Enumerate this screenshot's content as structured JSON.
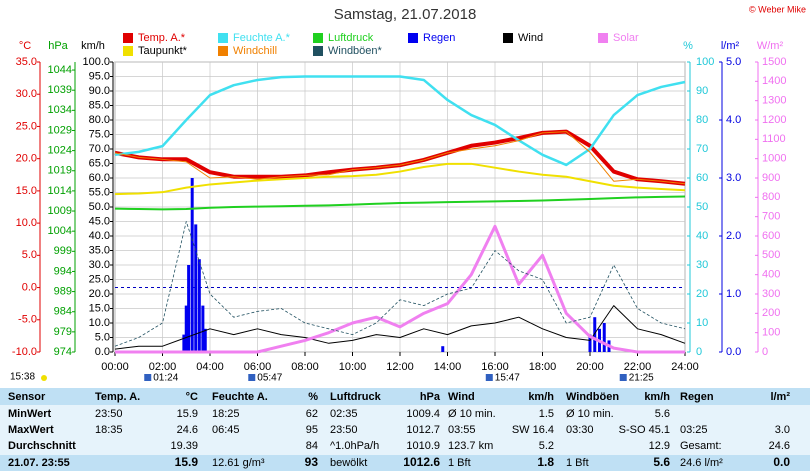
{
  "chart_data": {
    "type": "line",
    "title": "Samstag, 21.07.2018",
    "copyright": "© Weber Mike",
    "xlim": [
      0,
      24
    ],
    "xticks": [
      {
        "value": 0,
        "label": "00:00"
      },
      {
        "value": 2,
        "label": "02:00"
      },
      {
        "value": 4,
        "label": "04:00"
      },
      {
        "value": 6,
        "label": "06:00"
      },
      {
        "value": 8,
        "label": "08:00"
      },
      {
        "value": 10,
        "label": "10:00"
      },
      {
        "value": 12,
        "label": "12:00"
      },
      {
        "value": 14,
        "label": "14:00"
      },
      {
        "value": 16,
        "label": "16:00"
      },
      {
        "value": 18,
        "label": "18:00"
      },
      {
        "value": 20,
        "label": "20:00"
      },
      {
        "value": 22,
        "label": "22:00"
      },
      {
        "value": 24,
        "label": "24:00"
      }
    ],
    "grid": true,
    "grid_axis": "kmh",
    "reference_line": {
      "axis": "temp",
      "tick": 2
    },
    "axes": [
      {
        "id": "temp",
        "label": "°C",
        "color": "#e00000",
        "lim": [
          -10,
          35
        ],
        "ticks": [
          {
            "value": -10,
            "label": "-10.0"
          },
          {
            "value": -5,
            "label": "-5.0"
          },
          {
            "value": 0,
            "label": "0.0"
          },
          {
            "value": 5,
            "label": "5.0"
          },
          {
            "value": 10,
            "label": "10.0"
          },
          {
            "value": 15,
            "label": "15.0"
          },
          {
            "value": 20,
            "label": "20.0"
          },
          {
            "value": 25,
            "label": "25.0"
          },
          {
            "value": 30,
            "label": "30.0"
          },
          {
            "value": 35,
            "label": "35.0"
          }
        ]
      },
      {
        "id": "hpa",
        "label": "hPa",
        "color": "#00a000",
        "lim": [
          974,
          1046
        ],
        "ticks": [
          974,
          979,
          984,
          989,
          994,
          999,
          1004,
          1009,
          1014,
          1019,
          1024,
          1029,
          1034,
          1039,
          1044
        ]
      },
      {
        "id": "kmh",
        "label": "km/h",
        "color": "#000000",
        "lim": [
          0,
          100
        ],
        "ticks": [
          {
            "value": 0,
            "label": "0.0"
          },
          {
            "value": 5,
            "label": "5.0"
          },
          {
            "value": 10,
            "label": "10.0"
          },
          {
            "value": 15,
            "label": "15.0"
          },
          {
            "value": 20,
            "label": "20.0"
          },
          {
            "value": 25,
            "label": "25.0"
          },
          {
            "value": 30,
            "label": "30.0"
          },
          {
            "value": 35,
            "label": "35.0"
          },
          {
            "value": 40,
            "label": "40.0"
          },
          {
            "value": 45,
            "label": "45.0"
          },
          {
            "value": 50,
            "label": "50.0"
          },
          {
            "value": 55,
            "label": "55.0"
          },
          {
            "value": 60,
            "label": "60.0"
          },
          {
            "value": 65,
            "label": "65.0"
          },
          {
            "value": 70,
            "label": "70.0"
          },
          {
            "value": 75,
            "label": "75.0"
          },
          {
            "value": 80,
            "label": "80.0"
          },
          {
            "value": 85,
            "label": "85.0"
          },
          {
            "value": 90,
            "label": "90.0"
          },
          {
            "value": 95,
            "label": "95.0"
          },
          {
            "value": 100,
            "label": "100.0"
          }
        ]
      },
      {
        "id": "pct",
        "label": "%",
        "color": "#20c8d8",
        "lim": [
          0,
          100
        ],
        "ticks": [
          0,
          10,
          20,
          30,
          40,
          50,
          60,
          70,
          80,
          90,
          100
        ]
      },
      {
        "id": "rain",
        "label": "l/m²",
        "color": "#0000e0",
        "lim": [
          0,
          5
        ],
        "ticks": [
          {
            "value": 0,
            "label": "0.0"
          },
          {
            "value": 1,
            "label": "1.0"
          },
          {
            "value": 2,
            "label": "2.0"
          },
          {
            "value": 3,
            "label": "3.0"
          },
          {
            "value": 4,
            "label": "4.0"
          },
          {
            "value": 5,
            "label": "5.0"
          }
        ]
      },
      {
        "id": "solar",
        "label": "W/m²",
        "color": "#f070f0",
        "lim": [
          0,
          1500
        ],
        "ticks": [
          0,
          100,
          200,
          300,
          400,
          500,
          600,
          700,
          800,
          900,
          1000,
          1100,
          1200,
          1300,
          1400,
          1500
        ]
      }
    ],
    "x": [
      0,
      1,
      2,
      3,
      4,
      5,
      6,
      7,
      8,
      9,
      10,
      11,
      12,
      13,
      14,
      15,
      16,
      17,
      18,
      19,
      20,
      21,
      22,
      23,
      24
    ],
    "series": [
      {
        "name": "Temp. A.*",
        "color": "#e00000",
        "axis": "temp",
        "style": "line",
        "width": 4,
        "values": [
          20.9,
          20.2,
          19.9,
          19.9,
          17.9,
          17.2,
          17.2,
          17.2,
          17.4,
          17.9,
          18.3,
          18.6,
          19.0,
          19.8,
          20.9,
          22.0,
          22.5,
          23.2,
          24.0,
          24.2,
          22.0,
          18.0,
          16.8,
          16.5,
          16.1
        ]
      },
      {
        "name": "Feuchte A.*",
        "color": "#40e0f0",
        "axis": "pct",
        "style": "line",
        "width": 2.5,
        "values": [
          68,
          69,
          71,
          80,
          88.6,
          92,
          93.8,
          94.8,
          95,
          95,
          95,
          95,
          95,
          93.8,
          86.9,
          81.7,
          78.3,
          73,
          68,
          64.5,
          70,
          81.7,
          88.6,
          91.4,
          93.1
        ]
      },
      {
        "name": "Luftdruck",
        "color": "#20d020",
        "axis": "hpa",
        "style": "line",
        "width": 2,
        "values": [
          1009.6,
          1009.5,
          1009.4,
          1009.5,
          1009.8,
          1010.0,
          1010.1,
          1010.2,
          1010.3,
          1010.4,
          1010.6,
          1010.8,
          1011.0,
          1011.1,
          1011.2,
          1011.3,
          1011.4,
          1011.5,
          1011.6,
          1011.8,
          1012.0,
          1012.2,
          1012.4,
          1012.5,
          1012.6
        ]
      },
      {
        "name": "Regen",
        "color": "#0000f0",
        "axis": "rain",
        "style": "bar",
        "x": [
          2.9,
          3.0,
          3.1,
          3.25,
          3.4,
          3.55,
          3.7,
          3.8,
          13.8,
          20.0,
          20.2,
          20.4,
          20.6,
          20.8
        ],
        "values": [
          0.3,
          0.8,
          1.5,
          3.0,
          2.2,
          1.6,
          0.8,
          0.4,
          0.1,
          0.3,
          0.6,
          0.4,
          0.5,
          0.2
        ]
      },
      {
        "name": "Wind",
        "color": "#000000",
        "axis": "kmh",
        "style": "line",
        "width": 1,
        "values": [
          1,
          2,
          2,
          5,
          8,
          6,
          8,
          6,
          5,
          3,
          4,
          6,
          5,
          8,
          6,
          9,
          10,
          12,
          8,
          5,
          4,
          16,
          8,
          6,
          3
        ]
      },
      {
        "name": "Solar",
        "color": "#f080f0",
        "axis": "solar",
        "style": "line",
        "width": 3,
        "values": [
          0,
          0,
          0,
          0,
          0,
          0,
          0,
          30,
          60,
          100,
          150,
          180,
          130,
          200,
          250,
          400,
          650,
          350,
          500,
          200,
          80,
          20,
          0,
          0,
          0
        ]
      },
      {
        "name": "Taupunkt*",
        "color": "#f0e000",
        "axis": "temp",
        "style": "line",
        "width": 2,
        "values": [
          14.5,
          14.6,
          14.8,
          15.5,
          16.0,
          16.3,
          16.6,
          16.8,
          17.0,
          17.2,
          17.3,
          17.5,
          18.0,
          18.7,
          19.2,
          19.2,
          18.6,
          18.0,
          17.5,
          17.2,
          16.5,
          15.8,
          15.5,
          15.3,
          15.1
        ]
      },
      {
        "name": "Windchill",
        "color": "#f08000",
        "axis": "temp",
        "style": "line",
        "width": 1,
        "values": [
          20.9,
          20.2,
          19.9,
          19.5,
          17.0,
          17.2,
          16.8,
          17.2,
          17.4,
          17.5,
          18.3,
          18.6,
          19.0,
          19.8,
          20.9,
          21.5,
          22.0,
          22.8,
          24.0,
          24.2,
          21.0,
          16.5,
          16.8,
          16.5,
          16.1
        ]
      },
      {
        "name": "Windböen*",
        "color": "#205060",
        "axis": "kmh",
        "style": "dashed",
        "width": 0.8,
        "values": [
          2,
          5,
          10,
          45,
          20,
          12,
          14,
          15,
          10,
          8,
          6,
          10,
          18,
          16,
          20,
          22,
          35,
          28,
          25,
          10,
          12,
          30,
          15,
          10,
          8
        ]
      }
    ],
    "markers": [
      {
        "label": "01:24",
        "x": 1.4
      },
      {
        "label": "05:47",
        "x": 5.78
      },
      {
        "label": "15:47",
        "x": 15.78
      },
      {
        "label": "21:25",
        "x": 21.42
      }
    ],
    "time_left": "15:38"
  },
  "table": {
    "header": {
      "label": "Sensor",
      "temp_time": "Temp. A.",
      "temp": "°C",
      "hum_time": "Feuchte A.",
      "hum": "%",
      "pres_time": "Luftdruck",
      "pres": "hPa",
      "wind_time": "Wind",
      "wind": "km/h",
      "gust_time": "Windböen",
      "gust": "km/h",
      "rain_time": "Regen",
      "rain": "l/m²"
    },
    "rows": [
      {
        "label": "MinWert",
        "temp_time": "23:50",
        "temp": "15.9",
        "hum_time": "18:25",
        "hum": "62",
        "pres_time": "02:35",
        "pres": "1009.4",
        "wind_time": "Ø 10 min.",
        "wind": "1.5",
        "gust_time": "Ø 10 min.",
        "gust": "5.6"
      },
      {
        "label": "MaxWert",
        "temp_time": "18:35",
        "temp": "24.6",
        "hum_time": "06:45",
        "hum": "95",
        "pres_time": "23:50",
        "pres": "1012.7",
        "wind_time": "03:55",
        "wind": "SW 16.4",
        "gust_time": "03:30",
        "gust": "S-SO 45.1",
        "rain_time": "03:25",
        "rain": "3.0"
      },
      {
        "label": "Durchschnitt",
        "temp": "19.39",
        "hum": "84",
        "pres_time": "^1.0hPa/h",
        "pres": "1010.9",
        "wind_time": "123.7 km",
        "wind": "5.2",
        "gust": "12.9",
        "rain_time": "Gesamt:",
        "rain": "24.6"
      },
      {
        "label": "21.07. 23:55",
        "temp": "15.9",
        "hum_time": "12.61 g/m³",
        "hum": "93",
        "pres_time": "bewölkt",
        "pres": "1012.6",
        "wind_time": "1 Bft",
        "wind": "1.8",
        "gust_time": "1 Bft",
        "gust": "5.6",
        "rain_time": "24.6 l/m²",
        "rain": "0.0"
      }
    ]
  }
}
